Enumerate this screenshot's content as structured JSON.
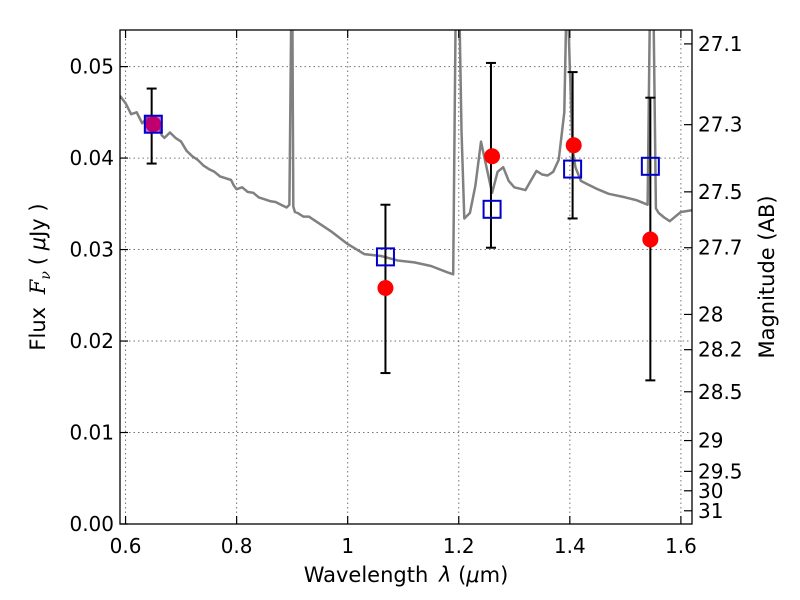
{
  "chart_data": {
    "type": "scatter",
    "xlabel": "Wavelength λ (μm)",
    "ylabel": "Flux F_ν ( μJy )",
    "ylabel_right": "Magnitude (AB)",
    "xlim": [
      0.59,
      1.62
    ],
    "ylim": [
      0.0,
      0.054
    ],
    "x_ticks": [
      {
        "value": 0.6,
        "label": "0.6"
      },
      {
        "value": 0.8,
        "label": "0.8"
      },
      {
        "value": 1.0,
        "label": "1"
      },
      {
        "value": 1.2,
        "label": "1.2"
      },
      {
        "value": 1.4,
        "label": "1.4"
      },
      {
        "value": 1.6,
        "label": "1.6"
      }
    ],
    "y_ticks": [
      {
        "value": 0.0,
        "label": "0.00"
      },
      {
        "value": 0.01,
        "label": "0.01"
      },
      {
        "value": 0.02,
        "label": "0.02"
      },
      {
        "value": 0.03,
        "label": "0.03"
      },
      {
        "value": 0.04,
        "label": "0.04"
      },
      {
        "value": 0.05,
        "label": "0.05"
      }
    ],
    "right_ticks": [
      {
        "mag": 27.1,
        "label": "27.1"
      },
      {
        "mag": 27.3,
        "label": "27.3"
      },
      {
        "mag": 27.5,
        "label": "27.5"
      },
      {
        "mag": 27.7,
        "label": "27.7"
      },
      {
        "mag": 28.0,
        "label": "28"
      },
      {
        "mag": 28.2,
        "label": "28.2"
      },
      {
        "mag": 28.5,
        "label": "28.5"
      },
      {
        "mag": 29.0,
        "label": "29"
      },
      {
        "mag": 29.5,
        "label": "29.5"
      },
      {
        "mag": 30.0,
        "label": "30"
      },
      {
        "mag": 31.0,
        "label": "31"
      }
    ],
    "grid": true,
    "series": [
      {
        "kind": "observed",
        "color": "#ff0000",
        "x": [
          0.65,
          1.068,
          1.26,
          1.407,
          1.545
        ],
        "y": [
          0.0437,
          0.0258,
          0.0402,
          0.0414,
          0.0311
        ],
        "err_low": [
          0.0394,
          0.0165,
          0.0302,
          0.0334,
          0.0157
        ],
        "err_high": [
          0.0476,
          0.0349,
          0.0504,
          0.0494,
          0.0466
        ],
        "err_x": [
          0.647,
          1.068,
          1.258,
          1.405,
          1.545
        ]
      },
      {
        "kind": "model-photometry",
        "color": "#0000cc",
        "x": [
          0.65,
          1.068,
          1.26,
          1.405,
          1.545
        ],
        "y": [
          0.0437,
          0.0292,
          0.0344,
          0.0388,
          0.0391
        ]
      },
      {
        "kind": "sed-model",
        "color": "#808080",
        "x": [
          0.59,
          0.6,
          0.61,
          0.62,
          0.63,
          0.64,
          0.645,
          0.65,
          0.655,
          0.66,
          0.665,
          0.67,
          0.68,
          0.69,
          0.7,
          0.71,
          0.72,
          0.73,
          0.74,
          0.75,
          0.76,
          0.77,
          0.78,
          0.79,
          0.795,
          0.8,
          0.81,
          0.82,
          0.83,
          0.84,
          0.85,
          0.86,
          0.87,
          0.88,
          0.89,
          0.895,
          0.899,
          0.9,
          0.902,
          0.905,
          0.91,
          0.92,
          0.93,
          0.95,
          0.97,
          1.0,
          1.03,
          1.06,
          1.09,
          1.12,
          1.15,
          1.18,
          1.19,
          1.195,
          1.2,
          1.205,
          1.21,
          1.22,
          1.23,
          1.24,
          1.25,
          1.26,
          1.27,
          1.28,
          1.29,
          1.3,
          1.32,
          1.34,
          1.35,
          1.36,
          1.37,
          1.38,
          1.39,
          1.395,
          1.4,
          1.405,
          1.41,
          1.42,
          1.43,
          1.45,
          1.47,
          1.5,
          1.52,
          1.54,
          1.545,
          1.55,
          1.555,
          1.56,
          1.57,
          1.58,
          1.59,
          1.6,
          1.62
        ],
        "y": [
          0.0468,
          0.046,
          0.0448,
          0.045,
          0.0438,
          0.0445,
          0.0436,
          0.0438,
          0.0432,
          0.0438,
          0.0425,
          0.0422,
          0.0428,
          0.0422,
          0.0418,
          0.0408,
          0.0402,
          0.0398,
          0.0392,
          0.0388,
          0.0385,
          0.038,
          0.0378,
          0.0376,
          0.037,
          0.0366,
          0.0368,
          0.0363,
          0.0362,
          0.0357,
          0.0355,
          0.0353,
          0.0352,
          0.0349,
          0.0346,
          0.0349,
          0.06,
          0.06,
          0.0347,
          0.0341,
          0.034,
          0.0336,
          0.0336,
          0.0328,
          0.032,
          0.0306,
          0.0295,
          0.0293,
          0.0288,
          0.0286,
          0.0282,
          0.0275,
          0.0273,
          0.06,
          0.06,
          0.043,
          0.0334,
          0.034,
          0.037,
          0.0418,
          0.039,
          0.0362,
          0.0385,
          0.039,
          0.0375,
          0.0368,
          0.0365,
          0.0386,
          0.0382,
          0.0381,
          0.0385,
          0.0398,
          0.045,
          0.06,
          0.05,
          0.041,
          0.039,
          0.0375,
          0.0372,
          0.0366,
          0.0361,
          0.0357,
          0.0354,
          0.0349,
          0.06,
          0.06,
          0.0345,
          0.034,
          0.0335,
          0.0331,
          0.0336,
          0.0341,
          0.0343
        ]
      }
    ]
  }
}
